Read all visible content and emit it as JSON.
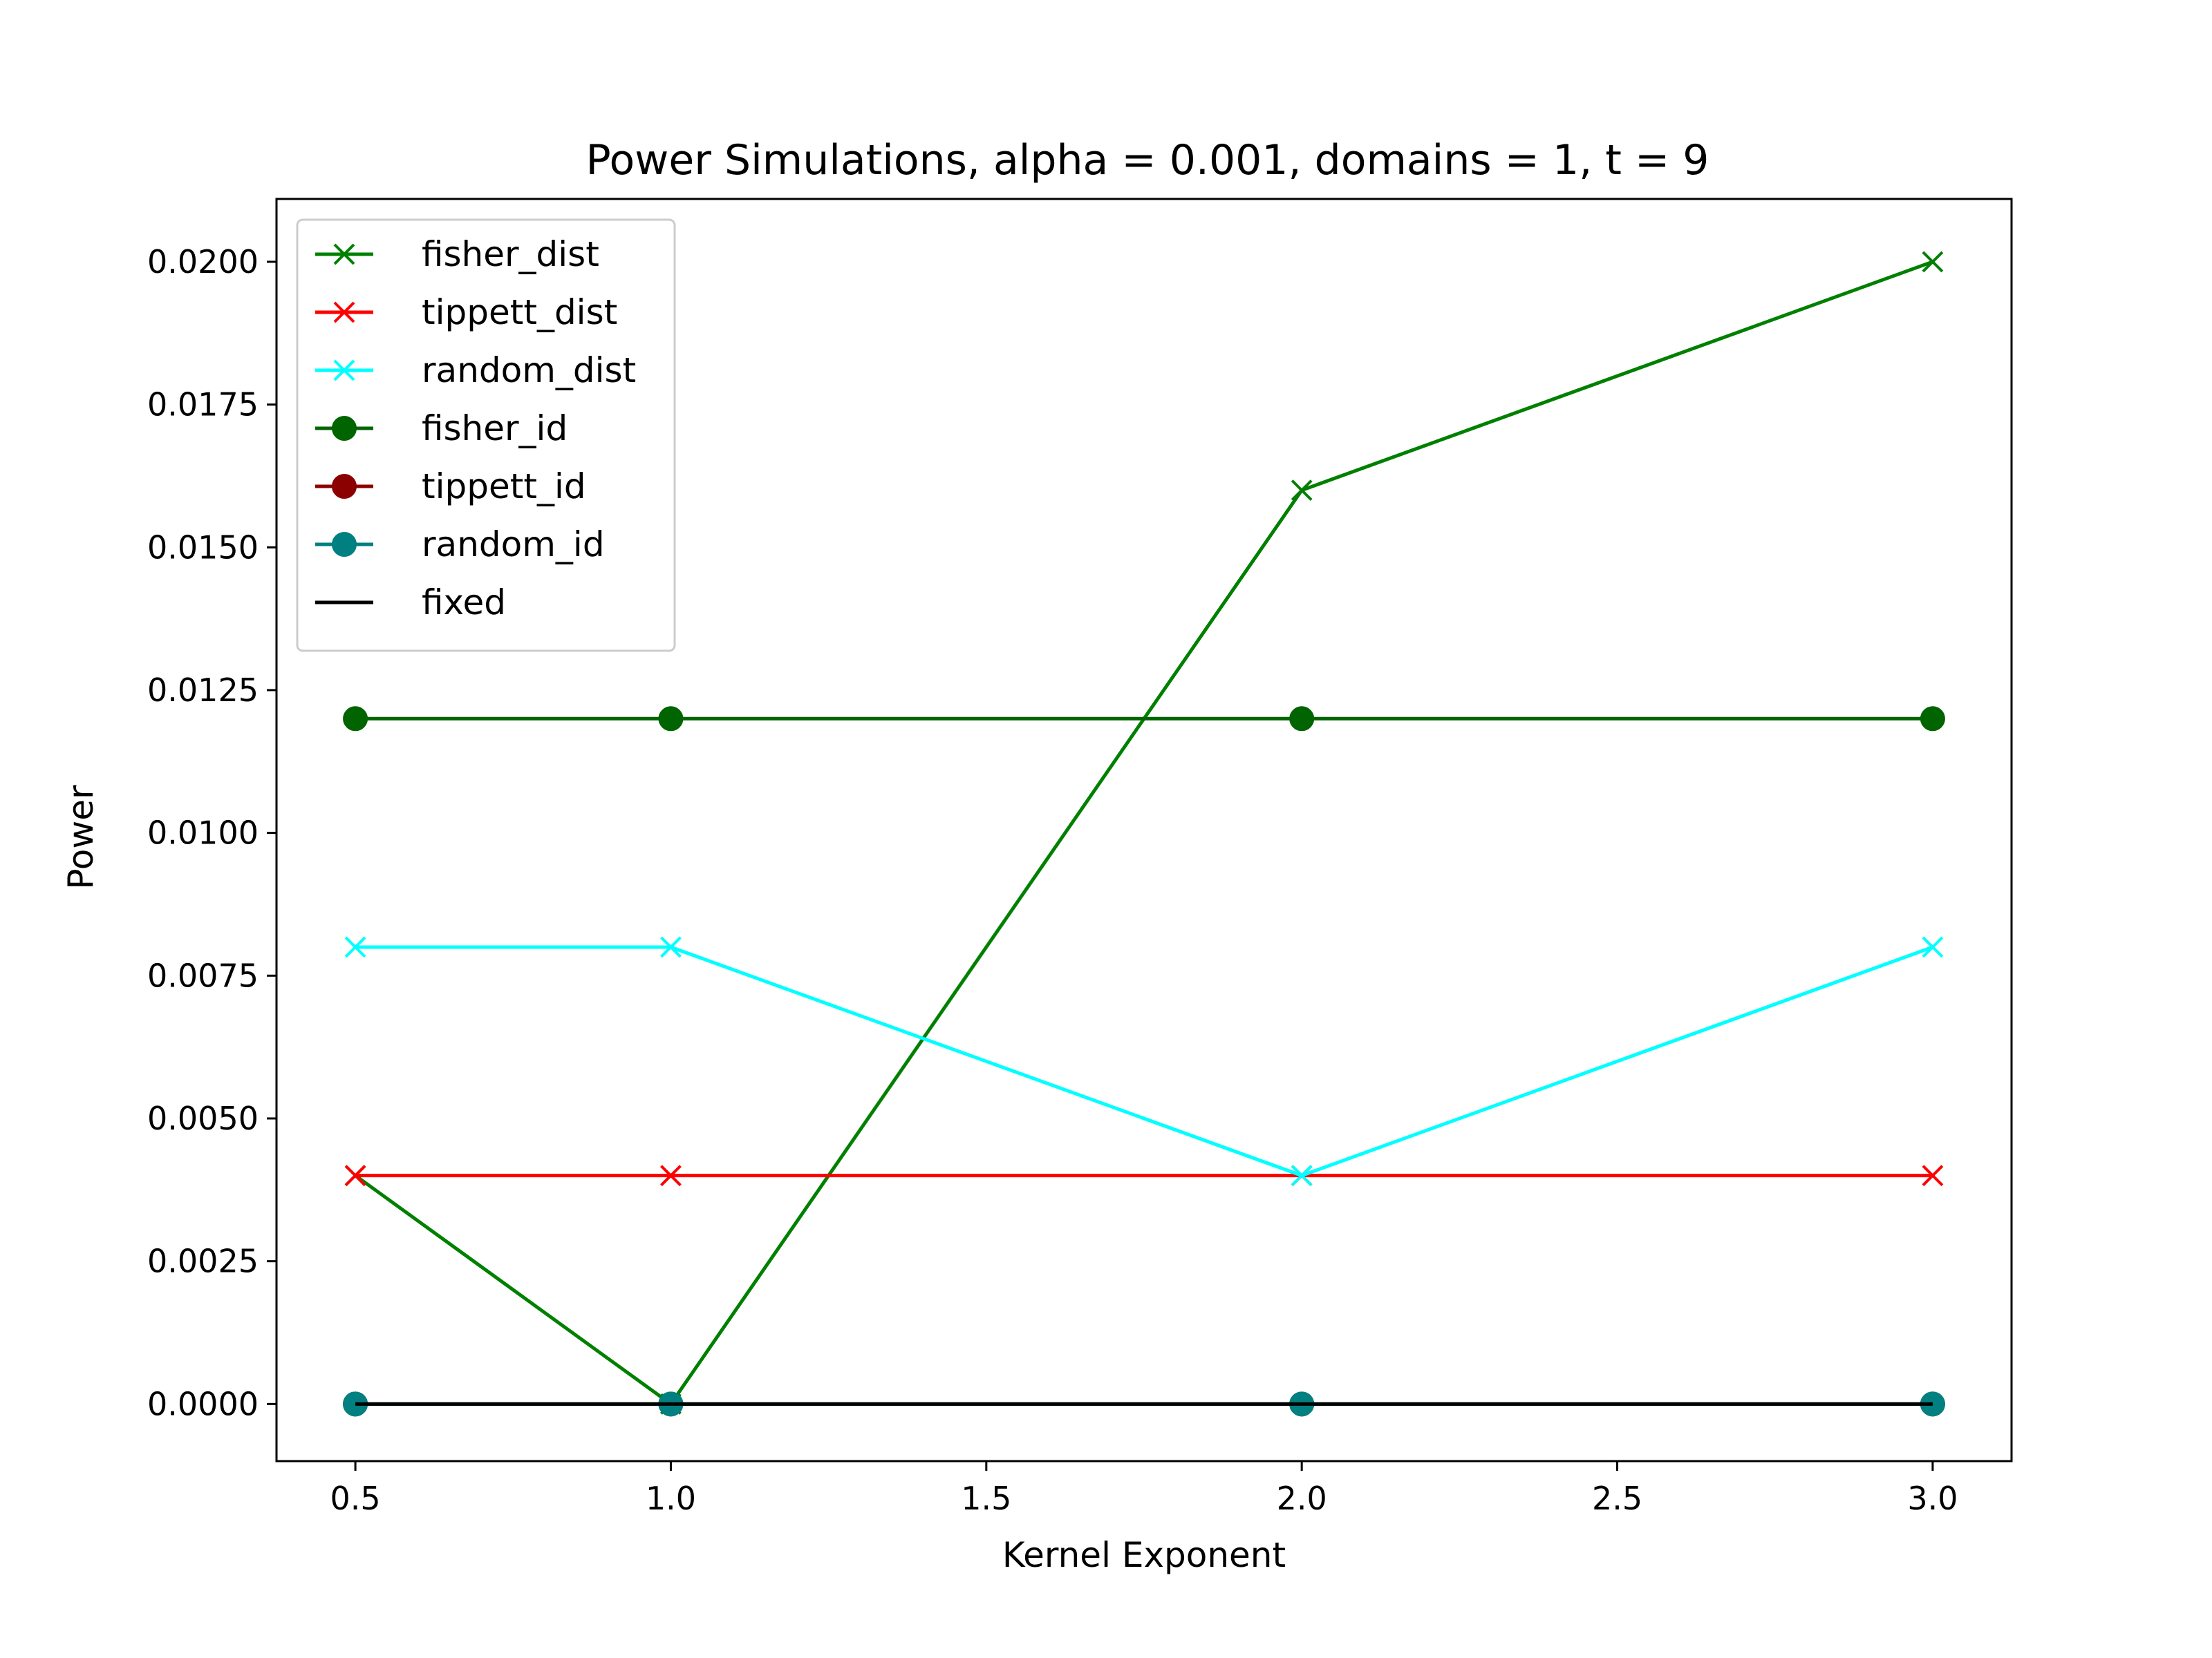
{
  "chart_data": {
    "type": "line",
    "title": "Power Simulations, alpha = 0.001, domains = 1, t = 9",
    "xlabel": "Kernel Exponent",
    "ylabel": "Power",
    "x": [
      0.5,
      1.0,
      2.0,
      3.0
    ],
    "xlim": [
      0.375,
      3.125
    ],
    "ylim": [
      -0.001,
      0.0211
    ],
    "xticks": [
      0.5,
      1.0,
      1.5,
      2.0,
      2.5,
      3.0
    ],
    "xtick_labels": [
      "0.5",
      "1.0",
      "1.5",
      "2.0",
      "2.5",
      "3.0"
    ],
    "yticks": [
      0.0,
      0.0025,
      0.005,
      0.0075,
      0.01,
      0.0125,
      0.015,
      0.0175,
      0.02
    ],
    "ytick_labels": [
      "0.0000",
      "0.0025",
      "0.0050",
      "0.0075",
      "0.0100",
      "0.0125",
      "0.0150",
      "0.0175",
      "0.0200"
    ],
    "grid": false,
    "legend_position": "top-left",
    "series": [
      {
        "name": "fisher_dist",
        "values": [
          0.004,
          0.0,
          0.016,
          0.02
        ],
        "color": "#008000",
        "marker": "x"
      },
      {
        "name": "tippett_dist",
        "values": [
          0.004,
          0.004,
          0.004,
          0.004
        ],
        "color": "#ff0000",
        "marker": "x"
      },
      {
        "name": "random_dist",
        "values": [
          0.008,
          0.008,
          0.004,
          0.008
        ],
        "color": "#00ffff",
        "marker": "x"
      },
      {
        "name": "fisher_id",
        "values": [
          0.012,
          0.012,
          0.012,
          0.012
        ],
        "color": "#006400",
        "marker": "o"
      },
      {
        "name": "tippett_id",
        "values": [
          0.0,
          0.0,
          0.0,
          0.0
        ],
        "color": "#8b0000",
        "marker": "o"
      },
      {
        "name": "random_id",
        "values": [
          0.0,
          0.0,
          0.0,
          0.0
        ],
        "color": "#008080",
        "marker": "o"
      },
      {
        "name": "fixed",
        "values": [
          0.0,
          0.0,
          0.0,
          0.0
        ],
        "color": "#000000",
        "marker": "none"
      }
    ]
  }
}
